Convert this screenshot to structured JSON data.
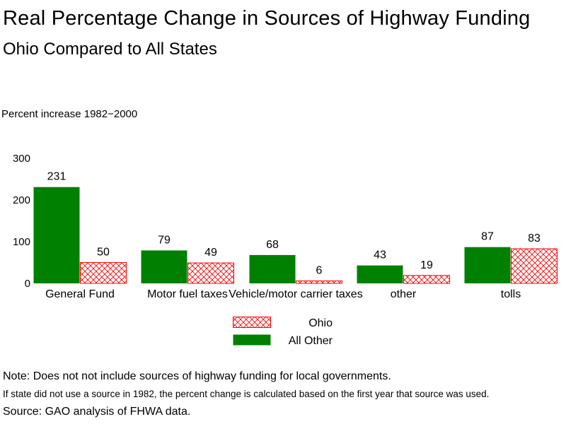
{
  "title": "Real Percentage Change in Sources of Highway Funding",
  "subtitle": "Ohio Compared to All States",
  "chart_data": {
    "type": "bar",
    "ylabel": "Percent increase 1982−2000",
    "ylim": [
      0,
      300
    ],
    "yticks": [
      0,
      100,
      200,
      300
    ],
    "categories": [
      "General Fund",
      "Motor fuel taxes",
      "Vehicle/motor carrier taxes",
      "other",
      "tolls"
    ],
    "series": [
      {
        "name": "All Other",
        "color": "#008000",
        "fill": "solid",
        "values": [
          231,
          79,
          68,
          43,
          87
        ]
      },
      {
        "name": "Ohio",
        "color": "#ff0000",
        "fill": "crosshatch",
        "values": [
          50,
          49,
          6,
          19,
          83
        ]
      }
    ],
    "legend_order": [
      "Ohio",
      "All Other"
    ],
    "legend_position": "bottom-center",
    "grid": false
  },
  "notes": {
    "note": "Note: Does not not include sources of highway funding for local governments.",
    "base_year": "If state did not use a source in 1982, the percent change is calculated based on the first year that source was used.",
    "source": "Source: GAO analysis of FHWA data."
  }
}
